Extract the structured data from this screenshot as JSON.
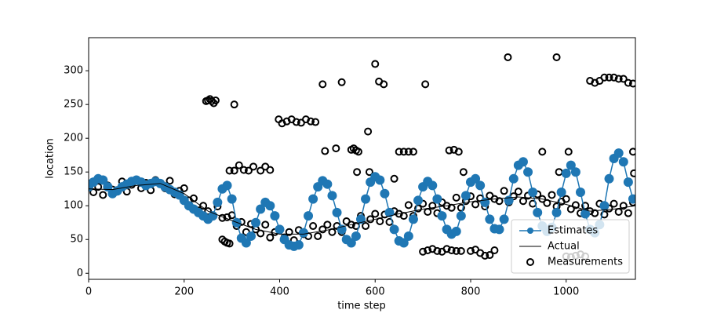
{
  "chart_data": {
    "type": "line",
    "xlabel": "time step",
    "ylabel": "location",
    "xlim": [
      0,
      1145
    ],
    "ylim": [
      -9,
      349
    ],
    "xticks": [
      0,
      200,
      400,
      600,
      800,
      1000
    ],
    "yticks": [
      0,
      50,
      100,
      150,
      200,
      250,
      300
    ],
    "legend": "lower right",
    "series": [
      {
        "name": "Estimates",
        "color": "#1f77b4",
        "style": "line-markers",
        "x": [
          0,
          10,
          20,
          30,
          40,
          50,
          60,
          70,
          80,
          90,
          100,
          110,
          120,
          130,
          140,
          150,
          160,
          170,
          180,
          190,
          200,
          210,
          220,
          230,
          240,
          250,
          260,
          270,
          280,
          290,
          300,
          310,
          320,
          330,
          340,
          350,
          360,
          370,
          380,
          390,
          400,
          410,
          420,
          430,
          440,
          450,
          460,
          470,
          480,
          490,
          500,
          510,
          520,
          530,
          540,
          550,
          560,
          570,
          580,
          590,
          600,
          610,
          620,
          630,
          640,
          650,
          660,
          670,
          680,
          690,
          700,
          710,
          720,
          730,
          740,
          750,
          760,
          770,
          780,
          790,
          800,
          810,
          820,
          830,
          840,
          850,
          860,
          870,
          880,
          890,
          900,
          910,
          920,
          930,
          940,
          950,
          960,
          970,
          980,
          990,
          1000,
          1010,
          1020,
          1030,
          1040,
          1050,
          1060,
          1070,
          1080,
          1090,
          1100,
          1110,
          1120,
          1130,
          1140
        ],
        "values": [
          128,
          135,
          140,
          138,
          128,
          118,
          122,
          128,
          132,
          136,
          138,
          135,
          130,
          133,
          136,
          133,
          128,
          124,
          120,
          116,
          108,
          100,
          95,
          90,
          85,
          80,
          85,
          105,
          125,
          130,
          110,
          75,
          52,
          45,
          55,
          75,
          95,
          105,
          100,
          85,
          65,
          50,
          42,
          40,
          42,
          60,
          85,
          110,
          128,
          137,
          132,
          115,
          90,
          65,
          50,
          45,
          55,
          80,
          110,
          135,
          143,
          138,
          118,
          90,
          65,
          48,
          45,
          55,
          80,
          108,
          128,
          136,
          130,
          110,
          85,
          65,
          58,
          62,
          85,
          115,
          135,
          140,
          130,
          105,
          80,
          66,
          65,
          80,
          108,
          140,
          160,
          165,
          150,
          120,
          90,
          70,
          62,
          68,
          90,
          120,
          148,
          160,
          150,
          120,
          88,
          65,
          60,
          72,
          100,
          140,
          170,
          178,
          165,
          135,
          110
        ]
      },
      {
        "name": "Actual",
        "color": "#000000",
        "style": "line",
        "x": [
          0,
          50,
          100,
          150,
          200,
          250,
          300,
          350,
          400,
          450,
          500,
          550,
          600,
          650,
          700,
          750,
          800,
          850,
          900,
          950,
          1000,
          1050,
          1100,
          1145
        ],
        "values": [
          125,
          124,
          130,
          133,
          118,
          92,
          78,
          65,
          58,
          58,
          64,
          72,
          80,
          88,
          95,
          100,
          106,
          110,
          113,
          110,
          102,
          92,
          95,
          100
        ]
      },
      {
        "name": "Measurements",
        "color": "#000000",
        "style": "markers-open",
        "x": [
          0,
          10,
          20,
          30,
          40,
          50,
          60,
          70,
          80,
          90,
          100,
          110,
          120,
          130,
          140,
          150,
          160,
          170,
          180,
          190,
          200,
          210,
          220,
          230,
          240,
          250,
          260,
          270,
          280,
          290,
          300,
          310,
          320,
          330,
          340,
          350,
          360,
          370,
          380,
          390,
          400,
          410,
          420,
          430,
          440,
          450,
          460,
          470,
          480,
          490,
          500,
          510,
          520,
          530,
          540,
          550,
          560,
          570,
          580,
          590,
          600,
          610,
          620,
          630,
          640,
          650,
          660,
          670,
          680,
          690,
          700,
          710,
          720,
          730,
          740,
          750,
          760,
          770,
          780,
          790,
          800,
          810,
          820,
          830,
          840,
          850,
          860,
          870,
          880,
          890,
          900,
          910,
          920,
          930,
          940,
          950,
          960,
          970,
          980,
          990,
          1000,
          1010,
          1020,
          1030,
          1040,
          1050,
          1060,
          1070,
          1080,
          1090,
          1100,
          1110,
          1120,
          1130,
          1140,
          246,
          250,
          254,
          258,
          262,
          266,
          305,
          280,
          285,
          290,
          295,
          295,
          305,
          315,
          325,
          335,
          345,
          360,
          370,
          380,
          398,
          405,
          415,
          425,
          435,
          445,
          455,
          465,
          475,
          490,
          495,
          518,
          530,
          550,
          555,
          560,
          562,
          565,
          585,
          588,
          600,
          608,
          618,
          640,
          650,
          660,
          670,
          680,
          705,
          700,
          710,
          720,
          730,
          740,
          750,
          760,
          770,
          780,
          755,
          765,
          775,
          785,
          800,
          810,
          820,
          830,
          840,
          850,
          878,
          950,
          980,
          985,
          1005,
          1000,
          1010,
          1020,
          1030,
          1040,
          1050,
          1060,
          1070,
          1080,
          1090,
          1100,
          1110,
          1120,
          1130,
          1140,
          1140,
          1142
        ],
        "values": [
          133,
          120,
          128,
          116,
          130,
          124,
          121,
          136,
          121,
          131,
          138,
          126,
          134,
          123,
          138,
          133,
          126,
          137,
          117,
          122,
          126,
          108,
          111,
          93,
          100,
          92,
          85,
          99,
          82,
          83,
          86,
          70,
          76,
          61,
          73,
          65,
          59,
          72,
          53,
          61,
          66,
          53,
          61,
          49,
          64,
          58,
          55,
          70,
          55,
          65,
          72,
          61,
          70,
          61,
          77,
          72,
          70,
          85,
          70,
          80,
          88,
          77,
          87,
          76,
          92,
          88,
          85,
          101,
          85,
          96,
          103,
          91,
          100,
          89,
          105,
          100,
          97,
          112,
          97,
          107,
          114,
          102,
          111,
          99,
          115,
          110,
          107,
          122,
          105,
          114,
          121,
          107,
          115,
          103,
          117,
          110,
          104,
          116,
          99,
          106,
          110,
          95,
          101,
          89,
          100,
          92,
          89,
          103,
          87,
          96,
          103,
          91,
          100,
          89,
          105,
          255,
          256,
          258,
          255,
          252,
          256,
          250,
          50,
          47,
          45,
          44,
          152,
          152,
          160,
          153,
          152,
          158,
          152,
          158,
          153,
          228,
          222,
          225,
          228,
          224,
          223,
          228,
          225,
          224,
          280,
          181,
          185,
          283,
          183,
          185,
          182,
          150,
          180,
          210,
          150,
          310,
          284,
          280,
          140,
          180,
          180,
          180,
          180,
          280,
          32,
          34,
          36,
          33,
          32,
          36,
          34,
          33,
          33,
          182,
          183,
          180,
          150,
          33,
          35,
          30,
          26,
          27,
          34,
          320,
          180,
          320,
          150,
          180,
          25,
          24,
          26,
          28,
          25,
          285,
          282,
          285,
          290,
          290,
          290,
          288,
          288,
          282,
          281,
          180,
          148
        ]
      }
    ]
  }
}
